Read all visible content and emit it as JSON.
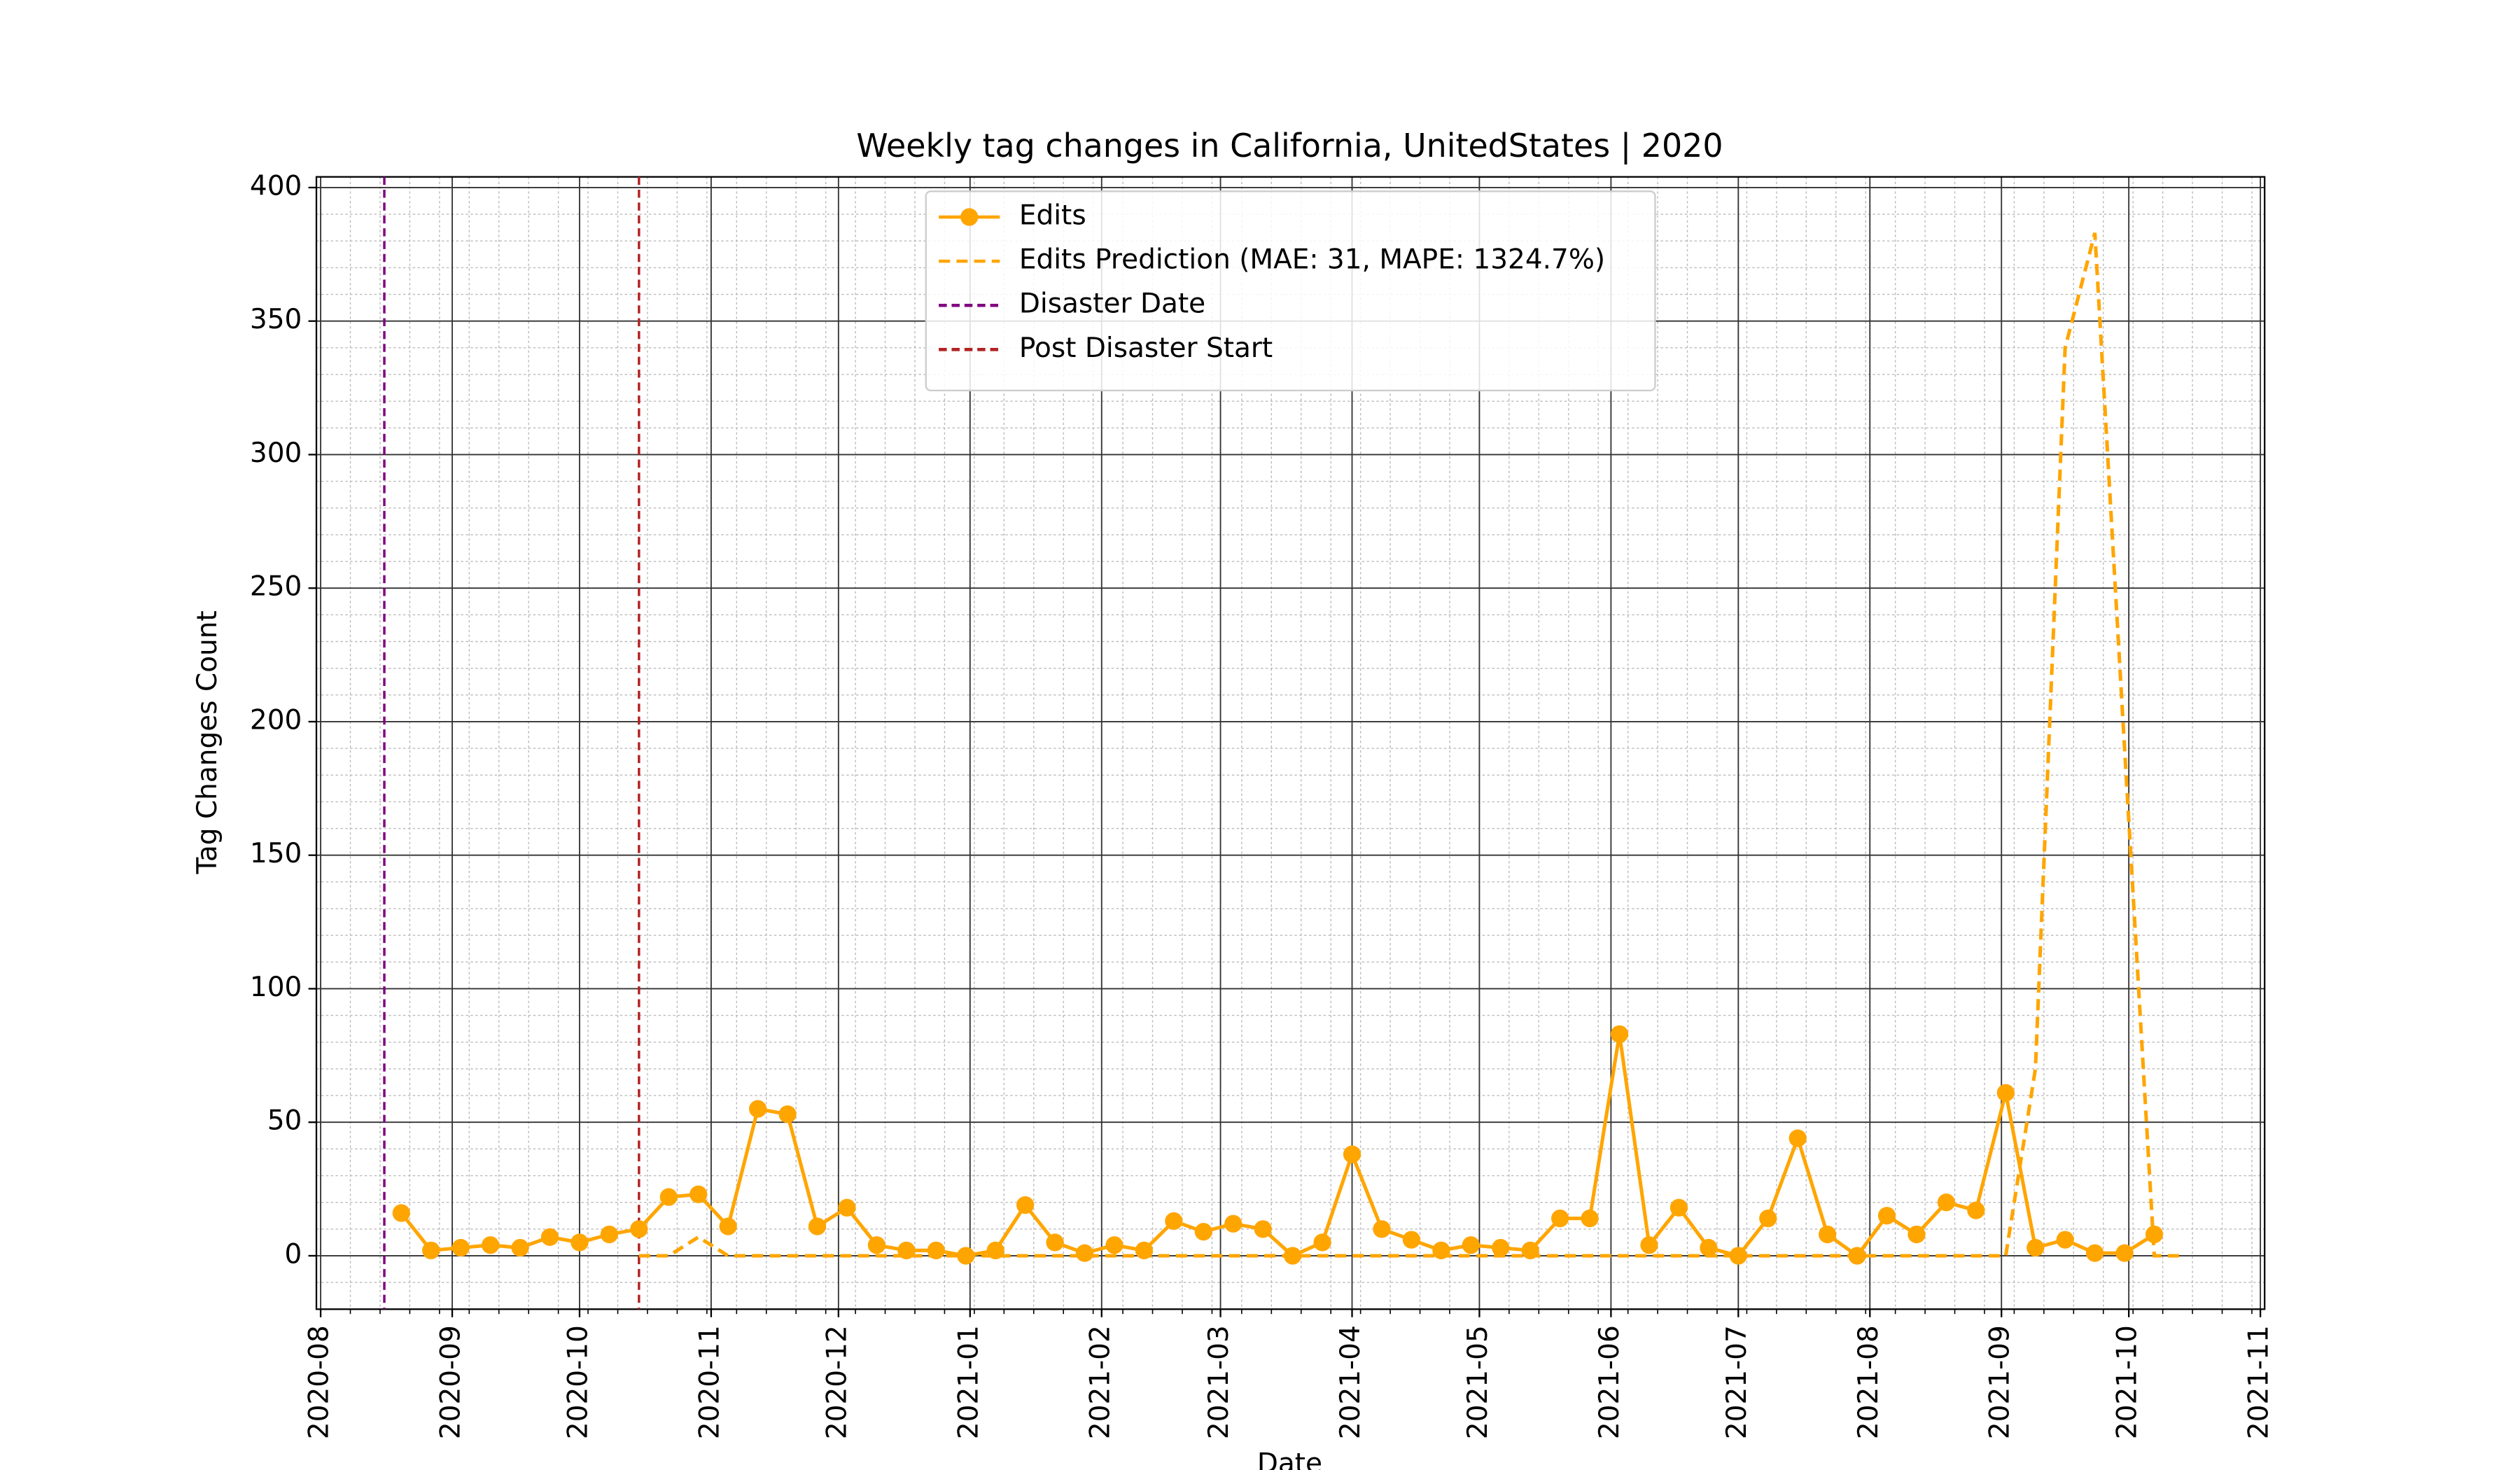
{
  "chart_data": {
    "type": "line",
    "title": "Weekly tag changes in California, UnitedStates | 2020",
    "xlabel": "Date",
    "ylabel": "Tag Changes Count",
    "xlim": [
      "2020-07-31",
      "2021-11-02"
    ],
    "xticks": [
      {
        "value": "2020-08-01",
        "label": "2020-08"
      },
      {
        "value": "2020-09-01",
        "label": "2020-09"
      },
      {
        "value": "2020-10-01",
        "label": "2020-10"
      },
      {
        "value": "2020-11-01",
        "label": "2020-11"
      },
      {
        "value": "2020-12-01",
        "label": "2020-12"
      },
      {
        "value": "2021-01-01",
        "label": "2021-01"
      },
      {
        "value": "2021-02-01",
        "label": "2021-02"
      },
      {
        "value": "2021-03-01",
        "label": "2021-03"
      },
      {
        "value": "2021-04-01",
        "label": "2021-04"
      },
      {
        "value": "2021-05-01",
        "label": "2021-05"
      },
      {
        "value": "2021-06-01",
        "label": "2021-06"
      },
      {
        "value": "2021-07-01",
        "label": "2021-07"
      },
      {
        "value": "2021-08-01",
        "label": "2021-08"
      },
      {
        "value": "2021-09-01",
        "label": "2021-09"
      },
      {
        "value": "2021-10-01",
        "label": "2021-10"
      },
      {
        "value": "2021-11-01",
        "label": "2021-11"
      }
    ],
    "ylim": [
      -20,
      404
    ],
    "yticks": [
      0,
      50,
      100,
      150,
      200,
      250,
      300,
      350,
      400
    ],
    "grid": true,
    "minor_grid": true,
    "legend": "upper center",
    "series": [
      {
        "name": "Edits",
        "color": "#ffa500",
        "style": "solid",
        "marker": true,
        "x": [
          "2020-08-20",
          "2020-08-27",
          "2020-09-03",
          "2020-09-10",
          "2020-09-17",
          "2020-09-24",
          "2020-10-01",
          "2020-10-08",
          "2020-10-15",
          "2020-10-22",
          "2020-10-29",
          "2020-11-05",
          "2020-11-12",
          "2020-11-19",
          "2020-11-26",
          "2020-12-03",
          "2020-12-10",
          "2020-12-17",
          "2020-12-24",
          "2020-12-31",
          "2021-01-07",
          "2021-01-14",
          "2021-01-21",
          "2021-01-28",
          "2021-02-04",
          "2021-02-11",
          "2021-02-18",
          "2021-02-25",
          "2021-03-04",
          "2021-03-11",
          "2021-03-18",
          "2021-03-25",
          "2021-04-01",
          "2021-04-08",
          "2021-04-15",
          "2021-04-22",
          "2021-04-29",
          "2021-05-06",
          "2021-05-13",
          "2021-05-20",
          "2021-05-27",
          "2021-06-03",
          "2021-06-10",
          "2021-06-17",
          "2021-06-24",
          "2021-07-01",
          "2021-07-08",
          "2021-07-15",
          "2021-07-22",
          "2021-07-29",
          "2021-08-05",
          "2021-08-12",
          "2021-08-19",
          "2021-08-26",
          "2021-09-02",
          "2021-09-09",
          "2021-09-16",
          "2021-09-23",
          "2021-09-30",
          "2021-10-07"
        ],
        "values": [
          16,
          2,
          3,
          4,
          3,
          7,
          5,
          8,
          10,
          22,
          23,
          11,
          55,
          53,
          11,
          18,
          4,
          2,
          2,
          0,
          2,
          19,
          5,
          1,
          4,
          2,
          13,
          9,
          12,
          10,
          0,
          5,
          38,
          10,
          6,
          2,
          4,
          3,
          2,
          14,
          14,
          83,
          4,
          18,
          3,
          0,
          14,
          44,
          8,
          0,
          15,
          8,
          20,
          17,
          61,
          3,
          6,
          1,
          1,
          8
        ]
      },
      {
        "name": "Edits Prediction (MAE: 31, MAPE: 1324.7%)",
        "color": "#ffa500",
        "style": "dashed",
        "marker": false,
        "x": [
          "2020-10-15",
          "2020-10-22",
          "2020-10-29",
          "2020-11-05",
          "2020-11-12",
          "2020-11-19",
          "2020-11-26",
          "2020-12-03",
          "2020-12-10",
          "2020-12-17",
          "2020-12-24",
          "2020-12-31",
          "2021-01-07",
          "2021-01-14",
          "2021-01-21",
          "2021-01-28",
          "2021-02-04",
          "2021-02-11",
          "2021-02-18",
          "2021-02-25",
          "2021-03-04",
          "2021-03-11",
          "2021-03-18",
          "2021-03-25",
          "2021-04-01",
          "2021-04-08",
          "2021-04-15",
          "2021-04-22",
          "2021-04-29",
          "2021-05-06",
          "2021-05-13",
          "2021-05-20",
          "2021-05-27",
          "2021-06-03",
          "2021-06-10",
          "2021-06-17",
          "2021-06-24",
          "2021-07-01",
          "2021-07-08",
          "2021-07-15",
          "2021-07-22",
          "2021-07-29",
          "2021-08-05",
          "2021-08-12",
          "2021-08-19",
          "2021-08-26",
          "2021-09-02",
          "2021-09-09",
          "2021-09-16",
          "2021-09-23",
          "2021-09-30",
          "2021-10-07",
          "2021-10-14"
        ],
        "values": [
          0,
          0,
          7,
          0,
          0,
          0,
          0,
          0,
          0,
          0,
          0,
          0,
          0,
          0,
          0,
          0,
          0,
          0,
          0,
          0,
          0,
          0,
          0,
          0,
          0,
          0,
          0,
          0,
          0,
          0,
          0,
          0,
          0,
          0,
          0,
          0,
          0,
          0,
          0,
          0,
          0,
          0,
          0,
          0,
          0,
          0,
          0,
          70,
          340,
          383,
          190,
          0,
          0
        ]
      }
    ],
    "vlines": [
      {
        "name": "Disaster Date",
        "color": "#800080",
        "x": "2020-08-16"
      },
      {
        "name": "Post Disaster Start",
        "color": "#b22222",
        "x": "2020-10-15"
      }
    ]
  }
}
